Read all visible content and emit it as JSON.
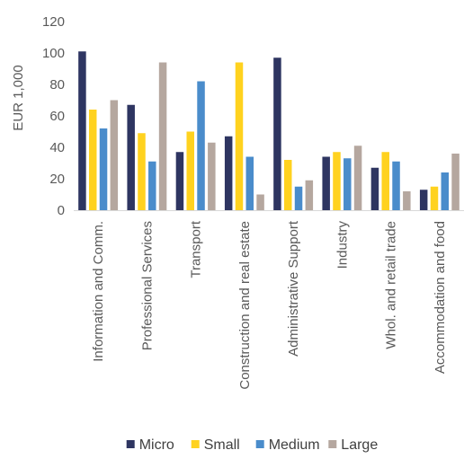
{
  "chart_data": {
    "type": "bar",
    "ylabel": "EUR 1,000",
    "ylim": [
      0,
      120
    ],
    "yticks": [
      0,
      20,
      40,
      60,
      80,
      100,
      120
    ],
    "grid": false,
    "legend_position": "bottom",
    "categories": [
      "Information and Comm.",
      "Professional Services",
      "Transport",
      "Construction and real estate",
      "Administrative Support",
      "Industry",
      "Whol. and retail trade",
      "Accommodation and food"
    ],
    "series": [
      {
        "name": "Micro",
        "color": "#2E3561",
        "values": [
          101,
          67,
          37,
          47,
          97,
          34,
          27,
          13
        ]
      },
      {
        "name": "Small",
        "color": "#FFD21F",
        "values": [
          64,
          49,
          50,
          94,
          32,
          37,
          37,
          15
        ]
      },
      {
        "name": "Medium",
        "color": "#4A8CCB",
        "values": [
          52,
          31,
          82,
          34,
          15,
          33,
          31,
          24
        ]
      },
      {
        "name": "Large",
        "color": "#B5A79F",
        "values": [
          70,
          94,
          43,
          10,
          19,
          41,
          12,
          36
        ]
      }
    ]
  }
}
